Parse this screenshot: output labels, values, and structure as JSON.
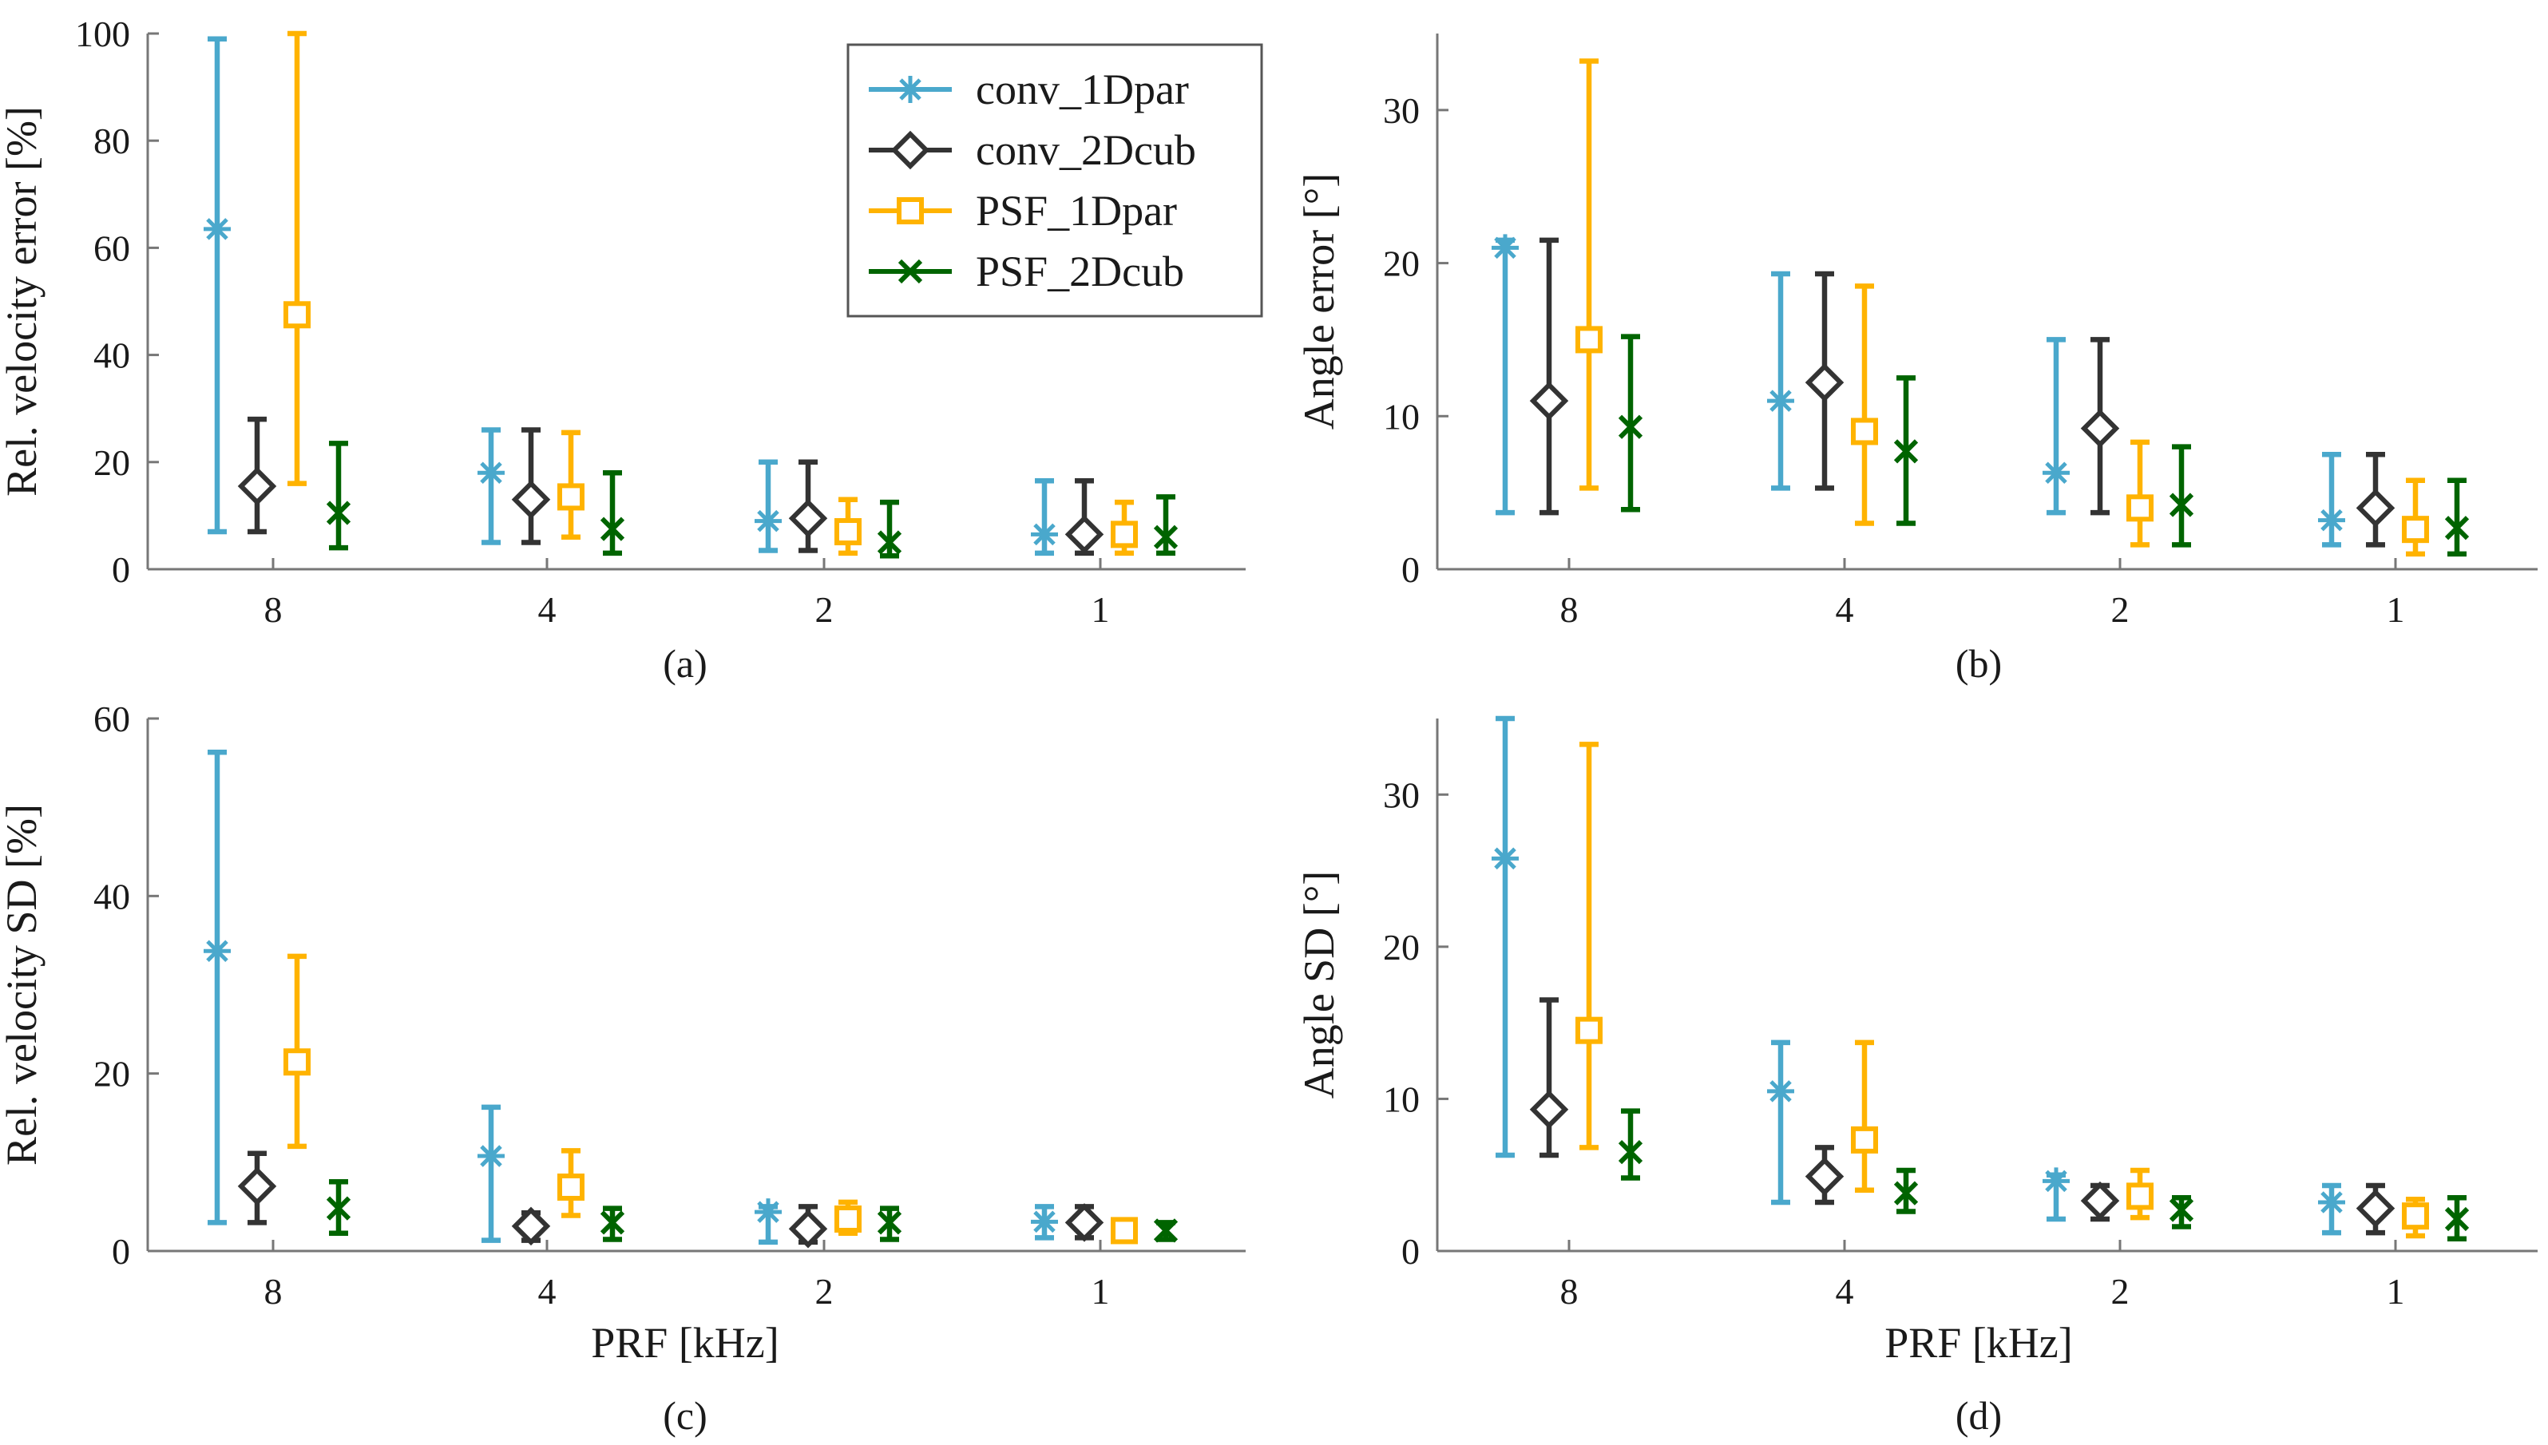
{
  "colors": {
    "conv_1Dpar": "#4aa8cc",
    "conv_2Dcub": "#333333",
    "PSF_1Dpar": "#ffb300",
    "PSF_2Dcub": "#006400",
    "axis": "#777777"
  },
  "legend": [
    {
      "key": "conv_1Dpar",
      "label": "conv_1Dpar",
      "marker": "asterisk"
    },
    {
      "key": "conv_2Dcub",
      "label": "conv_2Dcub",
      "marker": "diamond"
    },
    {
      "key": "PSF_1Dpar",
      "label": "PSF_1Dpar",
      "marker": "square"
    },
    {
      "key": "PSF_2Dcub",
      "label": "PSF_2Dcub",
      "marker": "cross"
    }
  ],
  "chart_data": [
    {
      "id": "a",
      "type": "errorbar",
      "panel_label": "(a)",
      "ylabel": "Rel. velocity error [%]",
      "xlabel": "",
      "categories": [
        "8",
        "4",
        "2",
        "1"
      ],
      "ylim": [
        0,
        100
      ],
      "yticks": [
        0,
        20,
        40,
        60,
        80,
        100
      ],
      "legend_position": "top-right",
      "series": [
        {
          "name": "conv_1Dpar",
          "values": [
            63.5,
            18,
            9,
            6.5
          ],
          "lower": [
            7,
            5,
            3.5,
            3
          ],
          "upper": [
            99,
            26,
            20,
            16.5
          ]
        },
        {
          "name": "conv_2Dcub",
          "values": [
            15.5,
            13,
            9.5,
            6.5
          ],
          "lower": [
            7,
            5,
            3.5,
            3
          ],
          "upper": [
            28,
            26,
            20,
            16.5
          ]
        },
        {
          "name": "PSF_1Dpar",
          "values": [
            47.5,
            13.5,
            7,
            6.5
          ],
          "lower": [
            16,
            6,
            3,
            3
          ],
          "upper": [
            100,
            25.5,
            13,
            12.5
          ]
        },
        {
          "name": "PSF_2Dcub",
          "values": [
            10.5,
            7.5,
            5,
            6
          ],
          "lower": [
            4,
            3,
            2.5,
            3
          ],
          "upper": [
            23.5,
            18,
            12.5,
            13.5
          ]
        }
      ]
    },
    {
      "id": "b",
      "type": "errorbar",
      "panel_label": "(b)",
      "ylabel": "Angle error [°]",
      "xlabel": "",
      "categories": [
        "8",
        "4",
        "2",
        "1"
      ],
      "ylim": [
        0,
        35
      ],
      "yticks": [
        0,
        10,
        20,
        30
      ],
      "series": [
        {
          "name": "conv_1Dpar",
          "values": [
            21,
            11,
            6.3,
            3.2
          ],
          "lower": [
            3.7,
            5.3,
            3.7,
            1.6
          ],
          "upper": [
            21.5,
            19.3,
            15,
            7.5
          ]
        },
        {
          "name": "conv_2Dcub",
          "values": [
            11,
            12.2,
            9.2,
            4
          ],
          "lower": [
            3.7,
            5.3,
            3.7,
            1.6
          ],
          "upper": [
            21.5,
            19.3,
            15,
            7.5
          ]
        },
        {
          "name": "PSF_1Dpar",
          "values": [
            15,
            9,
            4,
            2.6
          ],
          "lower": [
            5.3,
            3,
            1.6,
            1
          ],
          "upper": [
            33.2,
            18.5,
            8.3,
            5.8
          ]
        },
        {
          "name": "PSF_2Dcub",
          "values": [
            9.3,
            7.7,
            4.2,
            2.7
          ],
          "lower": [
            3.9,
            3,
            1.6,
            1
          ],
          "upper": [
            15.2,
            12.5,
            8,
            5.8
          ]
        }
      ]
    },
    {
      "id": "c",
      "type": "errorbar",
      "panel_label": "(c)",
      "ylabel": "Rel. velocity SD [%]",
      "xlabel": "PRF [kHz]",
      "categories": [
        "8",
        "4",
        "2",
        "1"
      ],
      "ylim": [
        0,
        60
      ],
      "yticks": [
        0,
        20,
        40,
        60
      ],
      "series": [
        {
          "name": "conv_1Dpar",
          "values": [
            33.8,
            10.7,
            4.4,
            3.3
          ],
          "lower": [
            3.2,
            1.2,
            1,
            1.5
          ],
          "upper": [
            56.2,
            16.2,
            5,
            5
          ]
        },
        {
          "name": "conv_2Dcub",
          "values": [
            7.3,
            2.8,
            2.5,
            3.2
          ],
          "lower": [
            3.2,
            1.2,
            1,
            1.5
          ],
          "upper": [
            11,
            4.3,
            5,
            5
          ]
        },
        {
          "name": "PSF_1Dpar",
          "values": [
            21.3,
            7.2,
            3.6,
            2.3
          ],
          "lower": [
            11.8,
            4,
            2,
            1.3
          ],
          "upper": [
            33.2,
            11.3,
            5.5,
            3.2
          ]
        },
        {
          "name": "PSF_2Dcub",
          "values": [
            4.8,
            3.2,
            3.2,
            2.3
          ],
          "lower": [
            2,
            1.3,
            1.3,
            1.3
          ],
          "upper": [
            7.8,
            4.8,
            4.8,
            3.2
          ]
        }
      ]
    },
    {
      "id": "d",
      "type": "errorbar",
      "panel_label": "(d)",
      "ylabel": "Angle SD [°]",
      "xlabel": "PRF [kHz]",
      "categories": [
        "8",
        "4",
        "2",
        "1"
      ],
      "ylim": [
        0,
        35
      ],
      "yticks": [
        0,
        10,
        20,
        30
      ],
      "series": [
        {
          "name": "conv_1Dpar",
          "values": [
            25.8,
            10.5,
            4.6,
            3.2
          ],
          "lower": [
            6.3,
            3.2,
            2.1,
            1.2
          ],
          "upper": [
            35,
            13.7,
            5,
            4.3
          ]
        },
        {
          "name": "conv_2Dcub",
          "values": [
            9.3,
            4.9,
            3.3,
            2.8
          ],
          "lower": [
            6.3,
            3.2,
            2.1,
            1.2
          ],
          "upper": [
            16.5,
            6.8,
            4.3,
            4.3
          ]
        },
        {
          "name": "PSF_1Dpar",
          "values": [
            14.5,
            7.3,
            3.6,
            2.3
          ],
          "lower": [
            6.8,
            4,
            2.2,
            1
          ],
          "upper": [
            33.3,
            13.7,
            5.3,
            3.4
          ]
        },
        {
          "name": "PSF_2Dcub",
          "values": [
            6.5,
            3.8,
            2.7,
            2.1
          ],
          "lower": [
            4.8,
            2.6,
            1.6,
            0.8
          ],
          "upper": [
            9.2,
            5.3,
            3.5,
            3.5
          ]
        }
      ]
    }
  ]
}
